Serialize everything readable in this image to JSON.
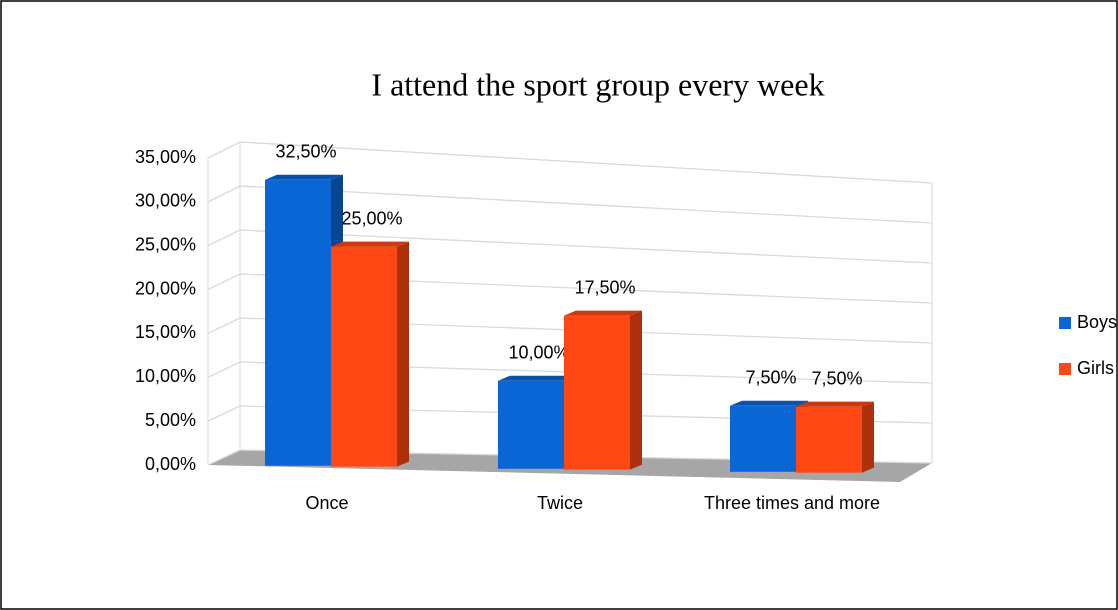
{
  "chart_data": {
    "type": "bar3d",
    "title": "I attend the sport group every week",
    "categories": [
      "Once",
      "Twice",
      "Three times and more"
    ],
    "series": [
      {
        "name": "Boys",
        "color": "#0a66d4",
        "values": [
          32.5,
          10,
          7.5
        ],
        "value_labels": [
          "32,50%",
          "10,00%",
          "7,50%"
        ]
      },
      {
        "name": "Girls",
        "color": "#ff4713",
        "values": [
          25,
          17.5,
          7.5
        ],
        "value_labels": [
          "25,00%",
          "17,50%",
          "7,50%"
        ]
      }
    ],
    "ylim": [
      0,
      35
    ],
    "yticks": [
      {
        "value": 0,
        "label": "0,00%"
      },
      {
        "value": 5,
        "label": "5,00%"
      },
      {
        "value": 10,
        "label": "10,00%"
      },
      {
        "value": 15,
        "label": "15,00%"
      },
      {
        "value": 20,
        "label": "20,00%"
      },
      {
        "value": 25,
        "label": "25,00%"
      },
      {
        "value": 30,
        "label": "30,00%"
      },
      {
        "value": 35,
        "label": "35,00%"
      }
    ],
    "grid": true,
    "legend": "right"
  }
}
